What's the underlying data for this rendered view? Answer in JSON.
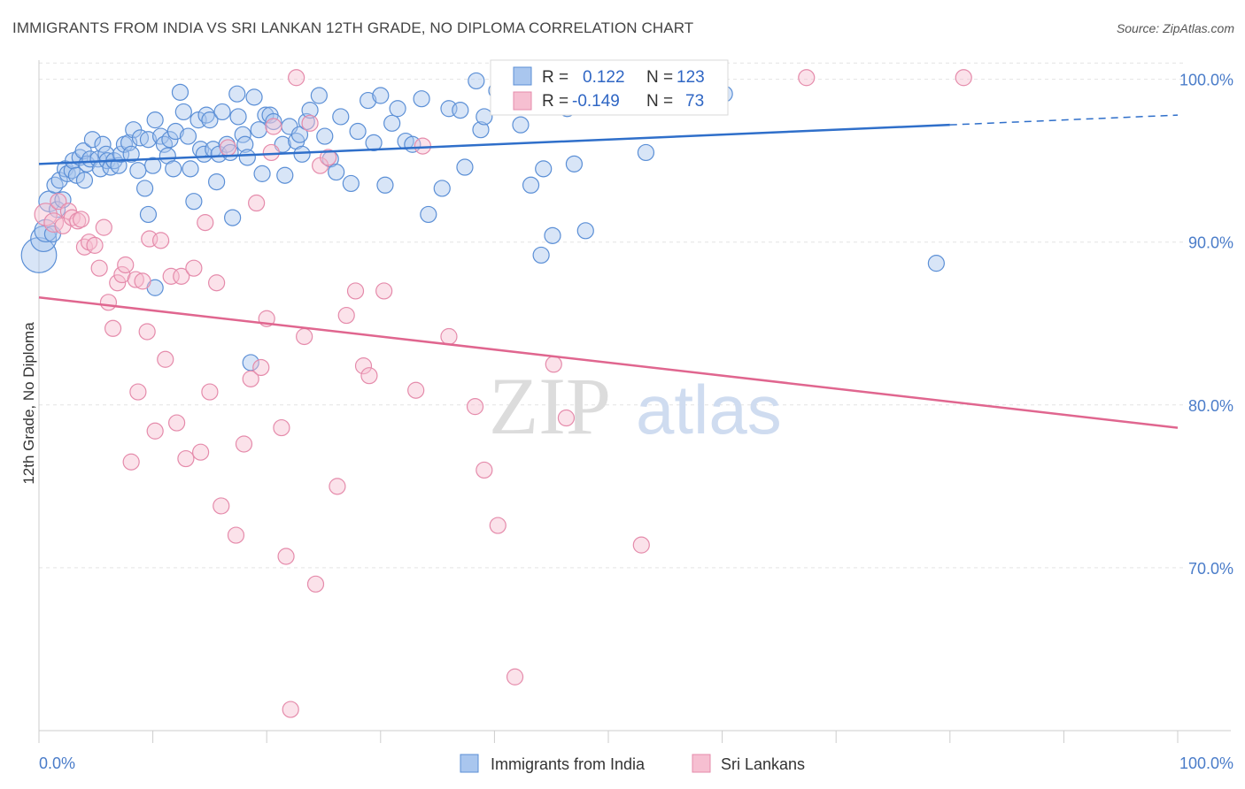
{
  "title": "IMMIGRANTS FROM INDIA VS SRI LANKAN 12TH GRADE, NO DIPLOMA CORRELATION CHART",
  "source": "Source: ZipAtlas.com",
  "watermark": {
    "zip": "ZIP",
    "atlas": "atlas"
  },
  "colors": {
    "blue_fill": "#a9c6ee",
    "blue_stroke": "#5b8fd6",
    "blue_line": "#2f6fca",
    "pink_fill": "#f6bfd1",
    "pink_stroke": "#e58bab",
    "pink_line": "#e0668f",
    "grid": "#e3e3e3",
    "tick_label": "#4a7cc9"
  },
  "legend": {
    "rows": [
      {
        "r_label": "R =",
        "r_value": "0.122",
        "n_label": "N =",
        "n_value": "123"
      },
      {
        "r_label": "R =",
        "r_value": "-0.149",
        "n_label": "N =",
        "n_value": "73"
      }
    ]
  },
  "chart_data": {
    "type": "scatter",
    "title": "IMMIGRANTS FROM INDIA VS SRI LANKAN 12TH GRADE, NO DIPLOMA CORRELATION CHART",
    "xlabel": "",
    "ylabel": "12th Grade, No Diploma",
    "xlim": [
      0,
      100
    ],
    "ylim": [
      60,
      101.5
    ],
    "x_tick_labels": [
      "0.0%",
      "100.0%"
    ],
    "y_ticks": [
      70,
      80,
      90,
      100
    ],
    "y_tick_labels": [
      "70.0%",
      "80.0%",
      "90.0%",
      "100.0%"
    ],
    "grid": true,
    "legend_position": "top-center",
    "series": [
      {
        "name": "Immigrants from India",
        "color": "#a9c6ee",
        "r": 0.122,
        "n": 123,
        "trend": {
          "x0": 0,
          "y0": 94.8,
          "x1": 80,
          "y1": 97.2,
          "dashed_to_x": 100,
          "dashed_to_y": 97.8
        },
        "points": [
          [
            0,
            89.2,
            2.2
          ],
          [
            0.4,
            90.2,
            1.6
          ],
          [
            0.6,
            90.7,
            1.4
          ],
          [
            0.9,
            92.5,
            1.3
          ],
          [
            1.2,
            90.5,
            1
          ],
          [
            1.4,
            93.5,
            1
          ],
          [
            1.6,
            92.0,
            1
          ],
          [
            1.8,
            93.8,
            1
          ],
          [
            2.1,
            92.6,
            1
          ],
          [
            2.3,
            94.5,
            1
          ],
          [
            2.5,
            94.2,
            1
          ],
          [
            2.9,
            94.4,
            1
          ],
          [
            3.0,
            95.0,
            1
          ],
          [
            3.3,
            94.1,
            1
          ],
          [
            3.6,
            95.2,
            1
          ],
          [
            3.9,
            95.6,
            1
          ],
          [
            4.0,
            93.8,
            1
          ],
          [
            4.2,
            94.8,
            1
          ],
          [
            4.5,
            95.1,
            1
          ],
          [
            4.7,
            96.3,
            1
          ],
          [
            5.2,
            95.1,
            1
          ],
          [
            5.4,
            94.5,
            1
          ],
          [
            5.6,
            96.0,
            1
          ],
          [
            5.9,
            95.4,
            1
          ],
          [
            6.0,
            95.0,
            1
          ],
          [
            6.3,
            94.6,
            1
          ],
          [
            6.6,
            95.0,
            1
          ],
          [
            7.0,
            94.7,
            1
          ],
          [
            7.2,
            95.4,
            1
          ],
          [
            7.5,
            96.0,
            1
          ],
          [
            7.9,
            96.1,
            1
          ],
          [
            8.1,
            95.4,
            1
          ],
          [
            8.3,
            96.9,
            1
          ],
          [
            8.7,
            94.4,
            1
          ],
          [
            8.9,
            96.4,
            1
          ],
          [
            9.3,
            93.3,
            1
          ],
          [
            9.6,
            96.3,
            1
          ],
          [
            10.0,
            94.7,
            1
          ],
          [
            10.2,
            97.5,
            1
          ],
          [
            10.7,
            96.5,
            1
          ],
          [
            11.0,
            96.0,
            1
          ],
          [
            11.3,
            95.3,
            1
          ],
          [
            11.5,
            96.3,
            1
          ],
          [
            11.8,
            94.5,
            1
          ],
          [
            12.0,
            96.8,
            1
          ],
          [
            12.4,
            99.2,
            1
          ],
          [
            12.7,
            98.0,
            1
          ],
          [
            13.1,
            96.5,
            1
          ],
          [
            13.3,
            94.5,
            1
          ],
          [
            13.6,
            92.5,
            1
          ],
          [
            14.0,
            97.5,
            1
          ],
          [
            14.2,
            95.7,
            1
          ],
          [
            14.5,
            95.4,
            1
          ],
          [
            14.7,
            97.8,
            1
          ],
          [
            15.0,
            97.5,
            1
          ],
          [
            15.3,
            95.7,
            1
          ],
          [
            15.6,
            93.7,
            1
          ],
          [
            15.8,
            95.4,
            1
          ],
          [
            16.1,
            98.0,
            1
          ],
          [
            16.5,
            96.0,
            1
          ],
          [
            16.8,
            95.5,
            1
          ],
          [
            17.0,
            91.5,
            1
          ],
          [
            17.4,
            99.1,
            1
          ],
          [
            17.5,
            97.7,
            1
          ],
          [
            17.9,
            96.6,
            1
          ],
          [
            18.1,
            96.0,
            1
          ],
          [
            18.3,
            95.2,
            1
          ],
          [
            18.6,
            82.6,
            1
          ],
          [
            18.9,
            98.9,
            1
          ],
          [
            19.3,
            96.9,
            1
          ],
          [
            19.6,
            94.2,
            1
          ],
          [
            19.9,
            97.8,
            1
          ],
          [
            20.3,
            97.8,
            1
          ],
          [
            20.6,
            97.4,
            1
          ],
          [
            21.4,
            96.0,
            1
          ],
          [
            21.6,
            94.1,
            1
          ],
          [
            22.0,
            97.1,
            1
          ],
          [
            22.6,
            96.2,
            1
          ],
          [
            22.9,
            96.6,
            1
          ],
          [
            23.1,
            95.4,
            1
          ],
          [
            23.5,
            97.4,
            1
          ],
          [
            23.8,
            98.1,
            1
          ],
          [
            24.6,
            99.0,
            1
          ],
          [
            25.1,
            96.5,
            1
          ],
          [
            25.6,
            95.1,
            1
          ],
          [
            26.1,
            94.3,
            1
          ],
          [
            26.5,
            97.7,
            1
          ],
          [
            27.4,
            93.6,
            1
          ],
          [
            28.0,
            96.8,
            1
          ],
          [
            28.9,
            98.7,
            1
          ],
          [
            29.4,
            96.1,
            1
          ],
          [
            30.0,
            99.0,
            1
          ],
          [
            30.4,
            93.5,
            1
          ],
          [
            31.0,
            97.3,
            1
          ],
          [
            31.5,
            98.2,
            1
          ],
          [
            32.2,
            96.2,
            1
          ],
          [
            32.8,
            96.0,
            1
          ],
          [
            33.6,
            98.8,
            1
          ],
          [
            34.2,
            91.7,
            1
          ],
          [
            35.4,
            93.3,
            1
          ],
          [
            36.0,
            98.2,
            1
          ],
          [
            37.0,
            98.1,
            1
          ],
          [
            37.4,
            94.6,
            1
          ],
          [
            38.4,
            99.9,
            1
          ],
          [
            38.8,
            96.9,
            1
          ],
          [
            39.1,
            97.7,
            1
          ],
          [
            40.2,
            99.3,
            1
          ],
          [
            41.6,
            99.2,
            1
          ],
          [
            42.3,
            97.2,
            1
          ],
          [
            42.6,
            98.8,
            1
          ],
          [
            43.2,
            93.5,
            1
          ],
          [
            44.1,
            89.2,
            1
          ],
          [
            44.3,
            94.5,
            1
          ],
          [
            45.1,
            90.4,
            1
          ],
          [
            46.4,
            98.2,
            1
          ],
          [
            47.0,
            94.8,
            1
          ],
          [
            48.0,
            90.7,
            1
          ],
          [
            50.1,
            98.4,
            1
          ],
          [
            53.3,
            95.5,
            1
          ],
          [
            60.2,
            99.1,
            1
          ],
          [
            78.8,
            88.7,
            1
          ],
          [
            9.6,
            91.7,
            1
          ],
          [
            10.2,
            87.2,
            1
          ]
        ]
      },
      {
        "name": "Sri Lankans",
        "color": "#f6bfd1",
        "r": -0.149,
        "n": 73,
        "trend": {
          "x0": 0,
          "y0": 86.6,
          "x1": 100,
          "y1": 78.6
        },
        "points": [
          [
            0.6,
            91.7,
            1.4
          ],
          [
            1.3,
            91.2,
            1.2
          ],
          [
            1.7,
            92.5,
            1
          ],
          [
            2.1,
            91.0,
            1
          ],
          [
            2.6,
            91.9,
            1
          ],
          [
            2.9,
            91.5,
            1
          ],
          [
            3.4,
            91.3,
            1
          ],
          [
            3.7,
            91.4,
            1
          ],
          [
            4.0,
            89.7,
            1
          ],
          [
            4.4,
            90.0,
            1
          ],
          [
            4.9,
            89.8,
            1
          ],
          [
            5.3,
            88.4,
            1
          ],
          [
            5.7,
            90.9,
            1
          ],
          [
            6.1,
            86.3,
            1
          ],
          [
            6.5,
            84.7,
            1
          ],
          [
            6.9,
            87.5,
            1
          ],
          [
            7.3,
            88.0,
            1
          ],
          [
            7.6,
            88.6,
            1
          ],
          [
            8.1,
            76.5,
            1
          ],
          [
            8.5,
            87.7,
            1
          ],
          [
            8.7,
            80.8,
            1
          ],
          [
            9.1,
            87.6,
            1
          ],
          [
            9.5,
            84.5,
            1
          ],
          [
            9.7,
            90.2,
            1
          ],
          [
            10.2,
            78.4,
            1
          ],
          [
            10.7,
            90.1,
            1
          ],
          [
            11.1,
            82.8,
            1
          ],
          [
            11.6,
            87.9,
            1
          ],
          [
            12.1,
            78.9,
            1
          ],
          [
            12.5,
            87.9,
            1
          ],
          [
            12.9,
            76.7,
            1
          ],
          [
            13.6,
            88.4,
            1
          ],
          [
            14.2,
            77.1,
            1
          ],
          [
            14.6,
            91.2,
            1
          ],
          [
            15.0,
            80.8,
            1
          ],
          [
            15.6,
            87.5,
            1
          ],
          [
            16.0,
            73.8,
            1
          ],
          [
            16.6,
            95.8,
            1
          ],
          [
            17.3,
            72.0,
            1
          ],
          [
            18.0,
            77.6,
            1
          ],
          [
            18.6,
            81.6,
            1
          ],
          [
            19.1,
            92.4,
            1
          ],
          [
            19.5,
            82.3,
            1
          ],
          [
            20.0,
            85.3,
            1
          ],
          [
            20.6,
            97.1,
            1
          ],
          [
            21.3,
            78.6,
            1
          ],
          [
            21.7,
            70.7,
            1
          ],
          [
            22.1,
            61.3,
            1
          ],
          [
            22.6,
            100.1,
            1
          ],
          [
            23.3,
            84.2,
            1
          ],
          [
            23.8,
            97.3,
            1
          ],
          [
            24.3,
            69.0,
            1
          ],
          [
            24.7,
            94.7,
            1
          ],
          [
            25.4,
            95.2,
            1
          ],
          [
            26.2,
            75.0,
            1
          ],
          [
            27.0,
            85.5,
            1
          ],
          [
            27.8,
            87.0,
            1
          ],
          [
            28.5,
            82.4,
            1
          ],
          [
            29.0,
            81.8,
            1
          ],
          [
            30.3,
            87.0,
            1
          ],
          [
            33.1,
            80.9,
            1
          ],
          [
            33.7,
            95.9,
            1
          ],
          [
            36.0,
            84.2,
            1
          ],
          [
            38.3,
            79.9,
            1
          ],
          [
            39.1,
            76.0,
            1
          ],
          [
            40.3,
            72.6,
            1
          ],
          [
            41.8,
            63.3,
            1
          ],
          [
            45.2,
            82.5,
            1
          ],
          [
            46.3,
            79.2,
            1
          ],
          [
            52.9,
            71.4,
            1
          ],
          [
            67.4,
            100.1,
            1
          ],
          [
            81.2,
            100.1,
            1
          ],
          [
            20.4,
            95.5,
            1
          ]
        ]
      }
    ]
  }
}
